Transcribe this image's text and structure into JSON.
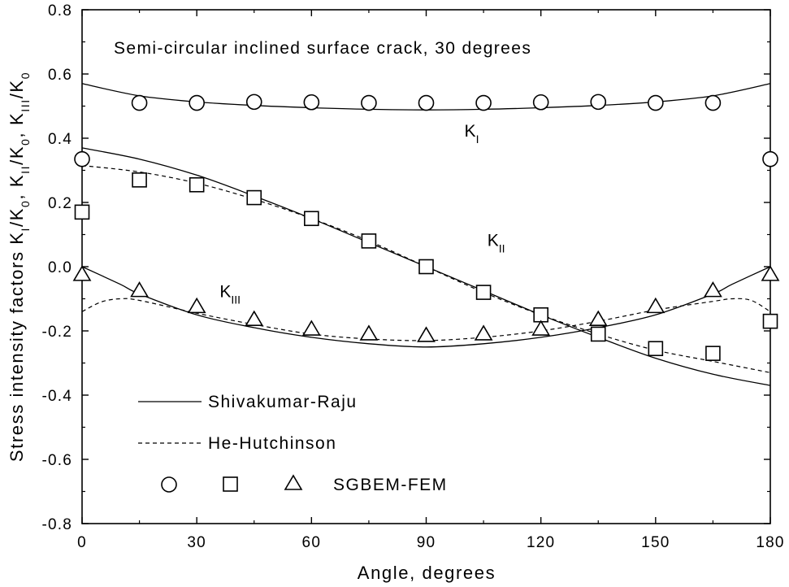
{
  "chart_data": {
    "type": "line",
    "annotation": "Semi-circular inclined surface crack, 30 degrees",
    "xlabel": "Angle, degrees",
    "ylabel": {
      "prefix": "Stress intensity factors K",
      "parts": [
        {
          "sub": "I",
          "text": "/K"
        },
        {
          "sub": "0",
          "text": ", K"
        },
        {
          "sub": "II",
          "text": "/K"
        },
        {
          "sub": "0",
          "text": ", K"
        },
        {
          "sub": "III",
          "text": "/K"
        },
        {
          "sub": "0",
          "text": ""
        }
      ]
    },
    "xlim": [
      0,
      180
    ],
    "ylim": [
      -0.8,
      0.8
    ],
    "xticks": [
      0,
      30,
      60,
      90,
      120,
      150,
      180
    ],
    "xtick_labels": [
      "0",
      "30",
      "60",
      "90",
      "120",
      "150",
      "180"
    ],
    "yticks": [
      0.8,
      0.6,
      0.4,
      0.2,
      0.0,
      -0.2,
      -0.4,
      -0.6,
      -0.8
    ],
    "ytick_labels": [
      "0.8",
      "0.6",
      "0.4",
      "0.2",
      "0.0",
      "-0.2",
      "-0.4",
      "-0.6",
      "-0.8"
    ],
    "grid": false,
    "legend_position": "bottom-left",
    "legend": {
      "solid": "Shivakumar-Raju",
      "dashed": "He-Hutchinson",
      "markers": "SGBEM-FEM"
    },
    "curve_labels": [
      {
        "base": "K",
        "sub": "I",
        "series": "KI",
        "x": 100,
        "y": 0.405
      },
      {
        "base": "K",
        "sub": "II",
        "series": "KII",
        "x": 106,
        "y": 0.065
      },
      {
        "base": "K",
        "sub": "III",
        "series": "KIII",
        "x": 36,
        "y": -0.095
      }
    ],
    "series": [
      {
        "id": "KI",
        "method": "Shivakumar-Raju",
        "style": "solid",
        "x": [
          0,
          15,
          30,
          45,
          60,
          75,
          90,
          105,
          120,
          135,
          150,
          165,
          180
        ],
        "y": [
          0.57,
          0.532,
          0.513,
          0.502,
          0.495,
          0.49,
          0.488,
          0.49,
          0.495,
          0.502,
          0.513,
          0.532,
          0.57
        ]
      },
      {
        "id": "KII",
        "method": "Shivakumar-Raju",
        "style": "solid",
        "x": [
          0,
          15,
          30,
          45,
          60,
          75,
          90,
          105,
          120,
          135,
          150,
          165,
          180
        ],
        "y": [
          0.37,
          0.335,
          0.285,
          0.22,
          0.15,
          0.075,
          0.0,
          -0.075,
          -0.15,
          -0.22,
          -0.285,
          -0.335,
          -0.37
        ]
      },
      {
        "id": "KII",
        "method": "He-Hutchinson",
        "style": "dashed",
        "x": [
          0,
          15,
          30,
          45,
          60,
          75,
          90,
          105,
          120,
          135,
          150,
          165,
          180
        ],
        "y": [
          0.315,
          0.295,
          0.26,
          0.21,
          0.15,
          0.08,
          0.0,
          -0.08,
          -0.15,
          -0.21,
          -0.26,
          -0.295,
          -0.33
        ]
      },
      {
        "id": "KIII",
        "method": "Shivakumar-Raju",
        "style": "solid",
        "x": [
          0,
          10,
          15,
          30,
          45,
          60,
          75,
          90,
          105,
          120,
          135,
          150,
          165,
          170,
          180
        ],
        "y": [
          0.0,
          -0.055,
          -0.085,
          -0.15,
          -0.19,
          -0.22,
          -0.24,
          -0.25,
          -0.24,
          -0.22,
          -0.19,
          -0.15,
          -0.085,
          -0.055,
          0.0
        ]
      },
      {
        "id": "KIII",
        "method": "He-Hutchinson",
        "style": "dashed",
        "x": [
          0,
          5,
          10,
          15,
          30,
          45,
          60,
          75,
          90,
          105,
          120,
          135,
          150,
          165,
          170,
          175,
          180
        ],
        "y": [
          -0.14,
          -0.11,
          -0.1,
          -0.105,
          -0.145,
          -0.18,
          -0.21,
          -0.225,
          -0.23,
          -0.22,
          -0.2,
          -0.17,
          -0.135,
          -0.108,
          -0.1,
          -0.105,
          -0.14
        ]
      },
      {
        "id": "KI",
        "method": "SGBEM-FEM",
        "marker": "circle",
        "x": [
          0,
          15,
          30,
          45,
          60,
          75,
          90,
          105,
          120,
          135,
          150,
          165,
          180
        ],
        "y": [
          0.335,
          0.51,
          0.51,
          0.513,
          0.512,
          0.51,
          0.51,
          0.51,
          0.512,
          0.513,
          0.51,
          0.51,
          0.335
        ]
      },
      {
        "id": "KII",
        "method": "SGBEM-FEM",
        "marker": "square",
        "x": [
          0,
          15,
          30,
          45,
          60,
          75,
          90,
          105,
          120,
          135,
          150,
          165,
          180
        ],
        "y": [
          0.17,
          0.27,
          0.255,
          0.215,
          0.15,
          0.08,
          0.0,
          -0.08,
          -0.15,
          -0.21,
          -0.255,
          -0.27,
          -0.17
        ]
      },
      {
        "id": "KIII",
        "method": "SGBEM-FEM",
        "marker": "triangle",
        "x": [
          0,
          15,
          30,
          45,
          60,
          75,
          90,
          105,
          120,
          135,
          150,
          165,
          180
        ],
        "y": [
          -0.025,
          -0.075,
          -0.125,
          -0.165,
          -0.195,
          -0.21,
          -0.215,
          -0.21,
          -0.195,
          -0.165,
          -0.125,
          -0.075,
          -0.025
        ]
      }
    ]
  }
}
